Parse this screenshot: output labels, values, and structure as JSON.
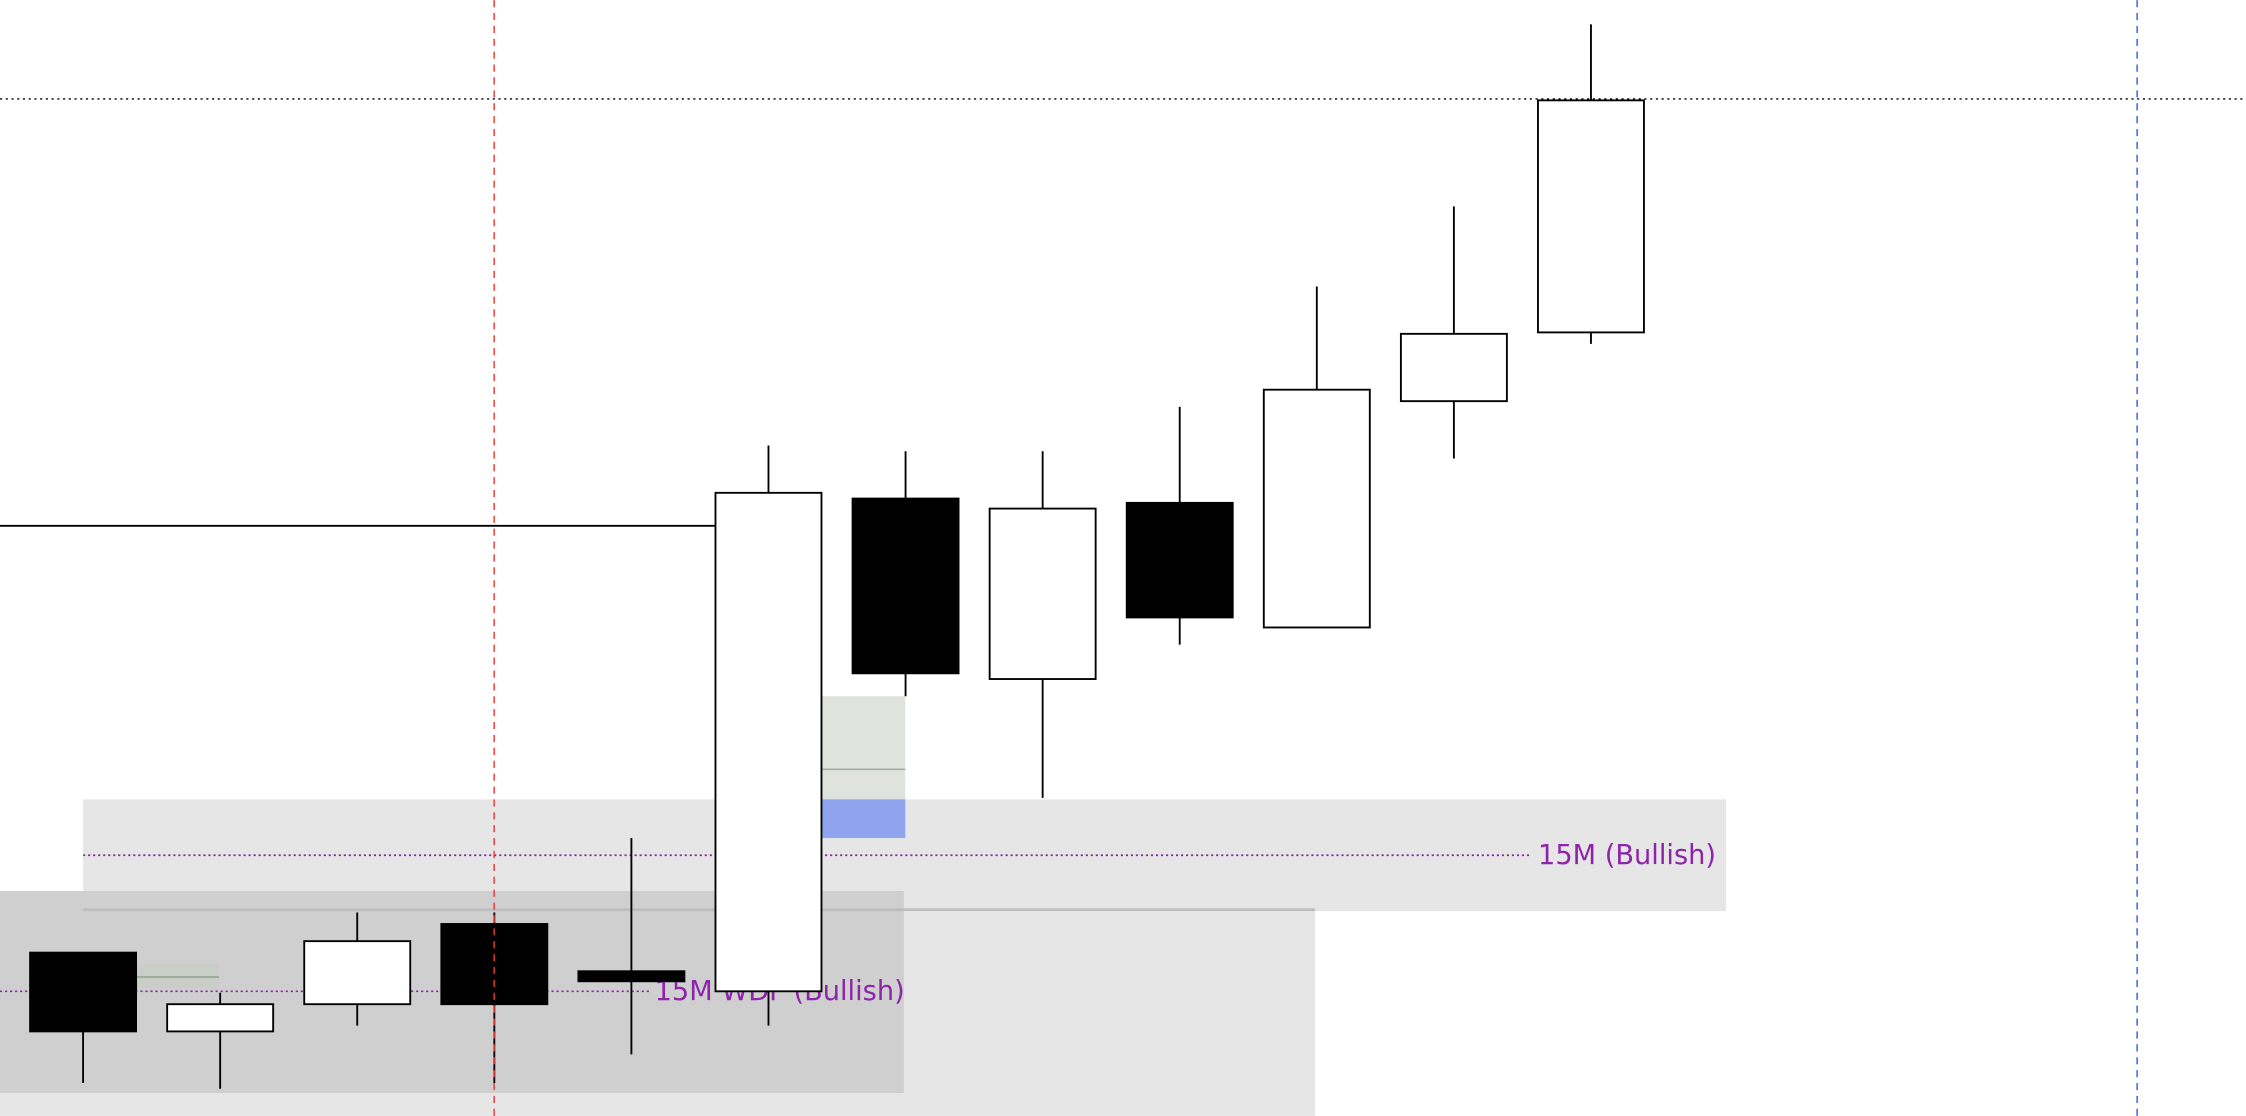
{
  "chart_data": {
    "type": "candlestick",
    "categories": [
      null,
      null,
      null,
      null,
      null,
      null,
      null,
      null,
      null,
      null,
      null,
      null
    ],
    "open": [
      114,
      59,
      78,
      134,
      101,
      87,
      431,
      305,
      428,
      341,
      499,
      547
    ],
    "high": [
      114,
      86,
      142,
      142,
      194,
      468,
      464,
      464,
      495,
      579,
      635,
      762
    ],
    "low": [
      23,
      19,
      63,
      23,
      43,
      63,
      293,
      222,
      329,
      341,
      459,
      539
    ],
    "close": [
      59,
      78,
      122,
      78,
      94,
      435,
      309,
      424,
      348,
      507,
      546,
      709
    ],
    "up_color": "#ffffff",
    "down_color": "#000000",
    "ylim": [
      0,
      779
    ],
    "annotations": [
      {
        "text": "15M (Bullish)",
        "value": 182,
        "color": "#8e24aa"
      },
      {
        "text": "15M WDF (Bullish)",
        "value": 87,
        "color": "#8e24aa"
      }
    ]
  }
}
